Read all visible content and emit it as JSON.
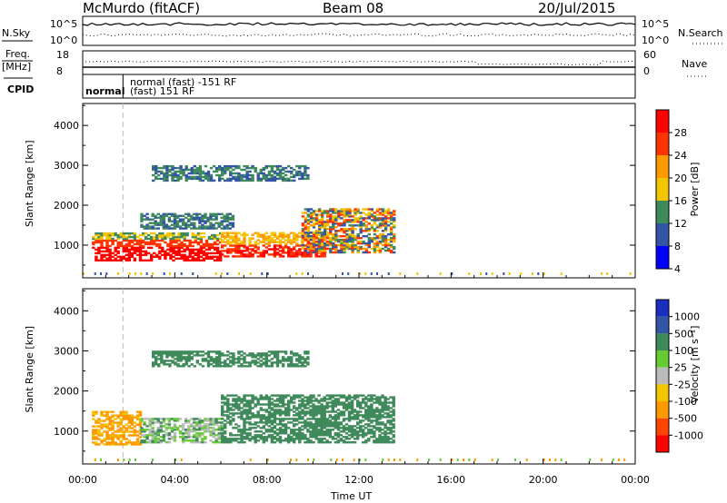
{
  "header": {
    "radar": "McMurdo (fitACF)",
    "beam": "Beam 08",
    "date": "20/Jul/2015"
  },
  "top_panel": {
    "nsky_label": "N.Sky",
    "nsky_ticks": [
      "10^5",
      "10^0"
    ],
    "nsearch_label": "N.Search",
    "nsearch_ticks": [
      "10^5",
      "10^0"
    ],
    "freq_label_1": "Freq.",
    "freq_label_2": "[MHz]",
    "freq_ticks": [
      "18",
      "8"
    ],
    "nave_label": "Nave",
    "nave_ticks": [
      "60",
      "0"
    ],
    "cpid_label": "CPID",
    "cpid_mode_1": "normal",
    "cpid_mode_2a": "normal (fast) -151 RF",
    "cpid_mode_2b": "(fast) 151 RF",
    "mode_change_hour": 1.75
  },
  "chart_data": [
    {
      "type": "heatmap",
      "name": "power",
      "ylabel": "Slant Range [km]",
      "xlabel": "",
      "xlim": [
        0,
        24
      ],
      "ylim": [
        180,
        4550
      ],
      "yticks": [
        1000,
        2000,
        3000,
        4000
      ],
      "colorbar_label": "Power [dB]",
      "colorbar_ticks": [
        "28",
        "24",
        "20",
        "16",
        "12",
        "8",
        "4"
      ],
      "colors": [
        "#0000ff",
        "#3355a6",
        "#3f8a5a",
        "#f5c400",
        "#ff9900",
        "#ff3300",
        "#ff0000"
      ],
      "echo_regions": [
        {
          "x": [
            0.4,
            6.0
          ],
          "y": [
            600,
            1300
          ],
          "level": "high"
        },
        {
          "x": [
            6.0,
            10.5
          ],
          "y": [
            700,
            1300
          ],
          "level": "mid"
        },
        {
          "x": [
            9.5,
            13.5
          ],
          "y": [
            800,
            1900
          ],
          "level": "mixed"
        },
        {
          "x": [
            3.0,
            9.8
          ],
          "y": [
            2600,
            3000
          ],
          "level": "low"
        },
        {
          "x": [
            2.5,
            6.5
          ],
          "y": [
            1400,
            1800
          ],
          "level": "low"
        }
      ]
    },
    {
      "type": "heatmap",
      "name": "velocity",
      "ylabel": "Slant Range [km]",
      "xlabel": "Time UT",
      "xlim": [
        0,
        24
      ],
      "ylim": [
        180,
        4550
      ],
      "yticks": [
        1000,
        2000,
        3000,
        4000
      ],
      "xticks": [
        "00:00",
        "04:00",
        "08:00",
        "12:00",
        "16:00",
        "20:00",
        "00:00"
      ],
      "colorbar_label": "Velocity [m s⁻¹]",
      "colorbar_ticks": [
        "1000",
        "500",
        "100",
        "25",
        "-25",
        "-100",
        "-500",
        "-1000"
      ],
      "colors": [
        "#ff0000",
        "#ff4400",
        "#ff9900",
        "#f5c400",
        "#bbbbbb",
        "#66cc33",
        "#3f8a5a",
        "#3355a6",
        "#1a2fbf"
      ],
      "echo_regions": [
        {
          "x": [
            0.4,
            2.5
          ],
          "y": [
            650,
            1500
          ],
          "velocity": "-100"
        },
        {
          "x": [
            2.5,
            6.0
          ],
          "y": [
            700,
            1300
          ],
          "velocity": "0"
        },
        {
          "x": [
            6.0,
            13.5
          ],
          "y": [
            700,
            1900
          ],
          "velocity": "100"
        },
        {
          "x": [
            3.0,
            9.8
          ],
          "y": [
            2600,
            3000
          ],
          "velocity": "100"
        }
      ]
    }
  ]
}
